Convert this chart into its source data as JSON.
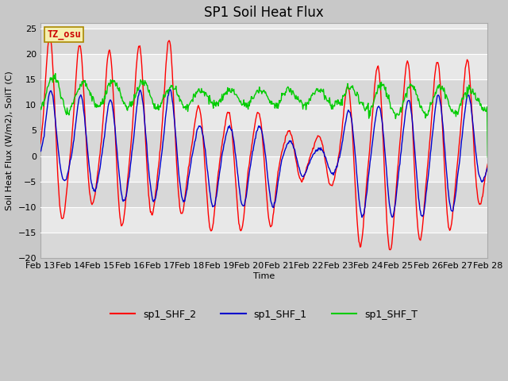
{
  "title": "SP1 Soil Heat Flux",
  "xlabel": "Time",
  "ylabel": "Soil Heat Flux (W/m2), SoilT (C)",
  "ylim": [
    -20,
    26
  ],
  "yticks": [
    -20,
    -15,
    -10,
    -5,
    0,
    5,
    10,
    15,
    20,
    25
  ],
  "xlim": [
    0,
    15
  ],
  "xtick_labels": [
    "Feb 13",
    "Feb 14",
    "Feb 15",
    "Feb 16",
    "Feb 17",
    "Feb 18",
    "Feb 19",
    "Feb 20",
    "Feb 21",
    "Feb 22",
    "Feb 23",
    "Feb 24",
    "Feb 25",
    "Feb 26",
    "Feb 27",
    "Feb 28"
  ],
  "fig_bg": "#c8c8c8",
  "plot_bg_light": "#e8e8e8",
  "plot_bg_dark": "#d8d8d8",
  "line_colors": {
    "sp1_SHF_2": "#ff0000",
    "sp1_SHF_1": "#0000cc",
    "sp1_SHF_T": "#00cc00"
  },
  "watermark_text": "TZ_osu",
  "watermark_color": "#cc0000",
  "watermark_bg": "#f5f0b0",
  "watermark_border": "#aa8800",
  "title_fontsize": 12,
  "label_fontsize": 8,
  "tick_fontsize": 8,
  "legend_fontsize": 9,
  "linewidth": 1.0
}
